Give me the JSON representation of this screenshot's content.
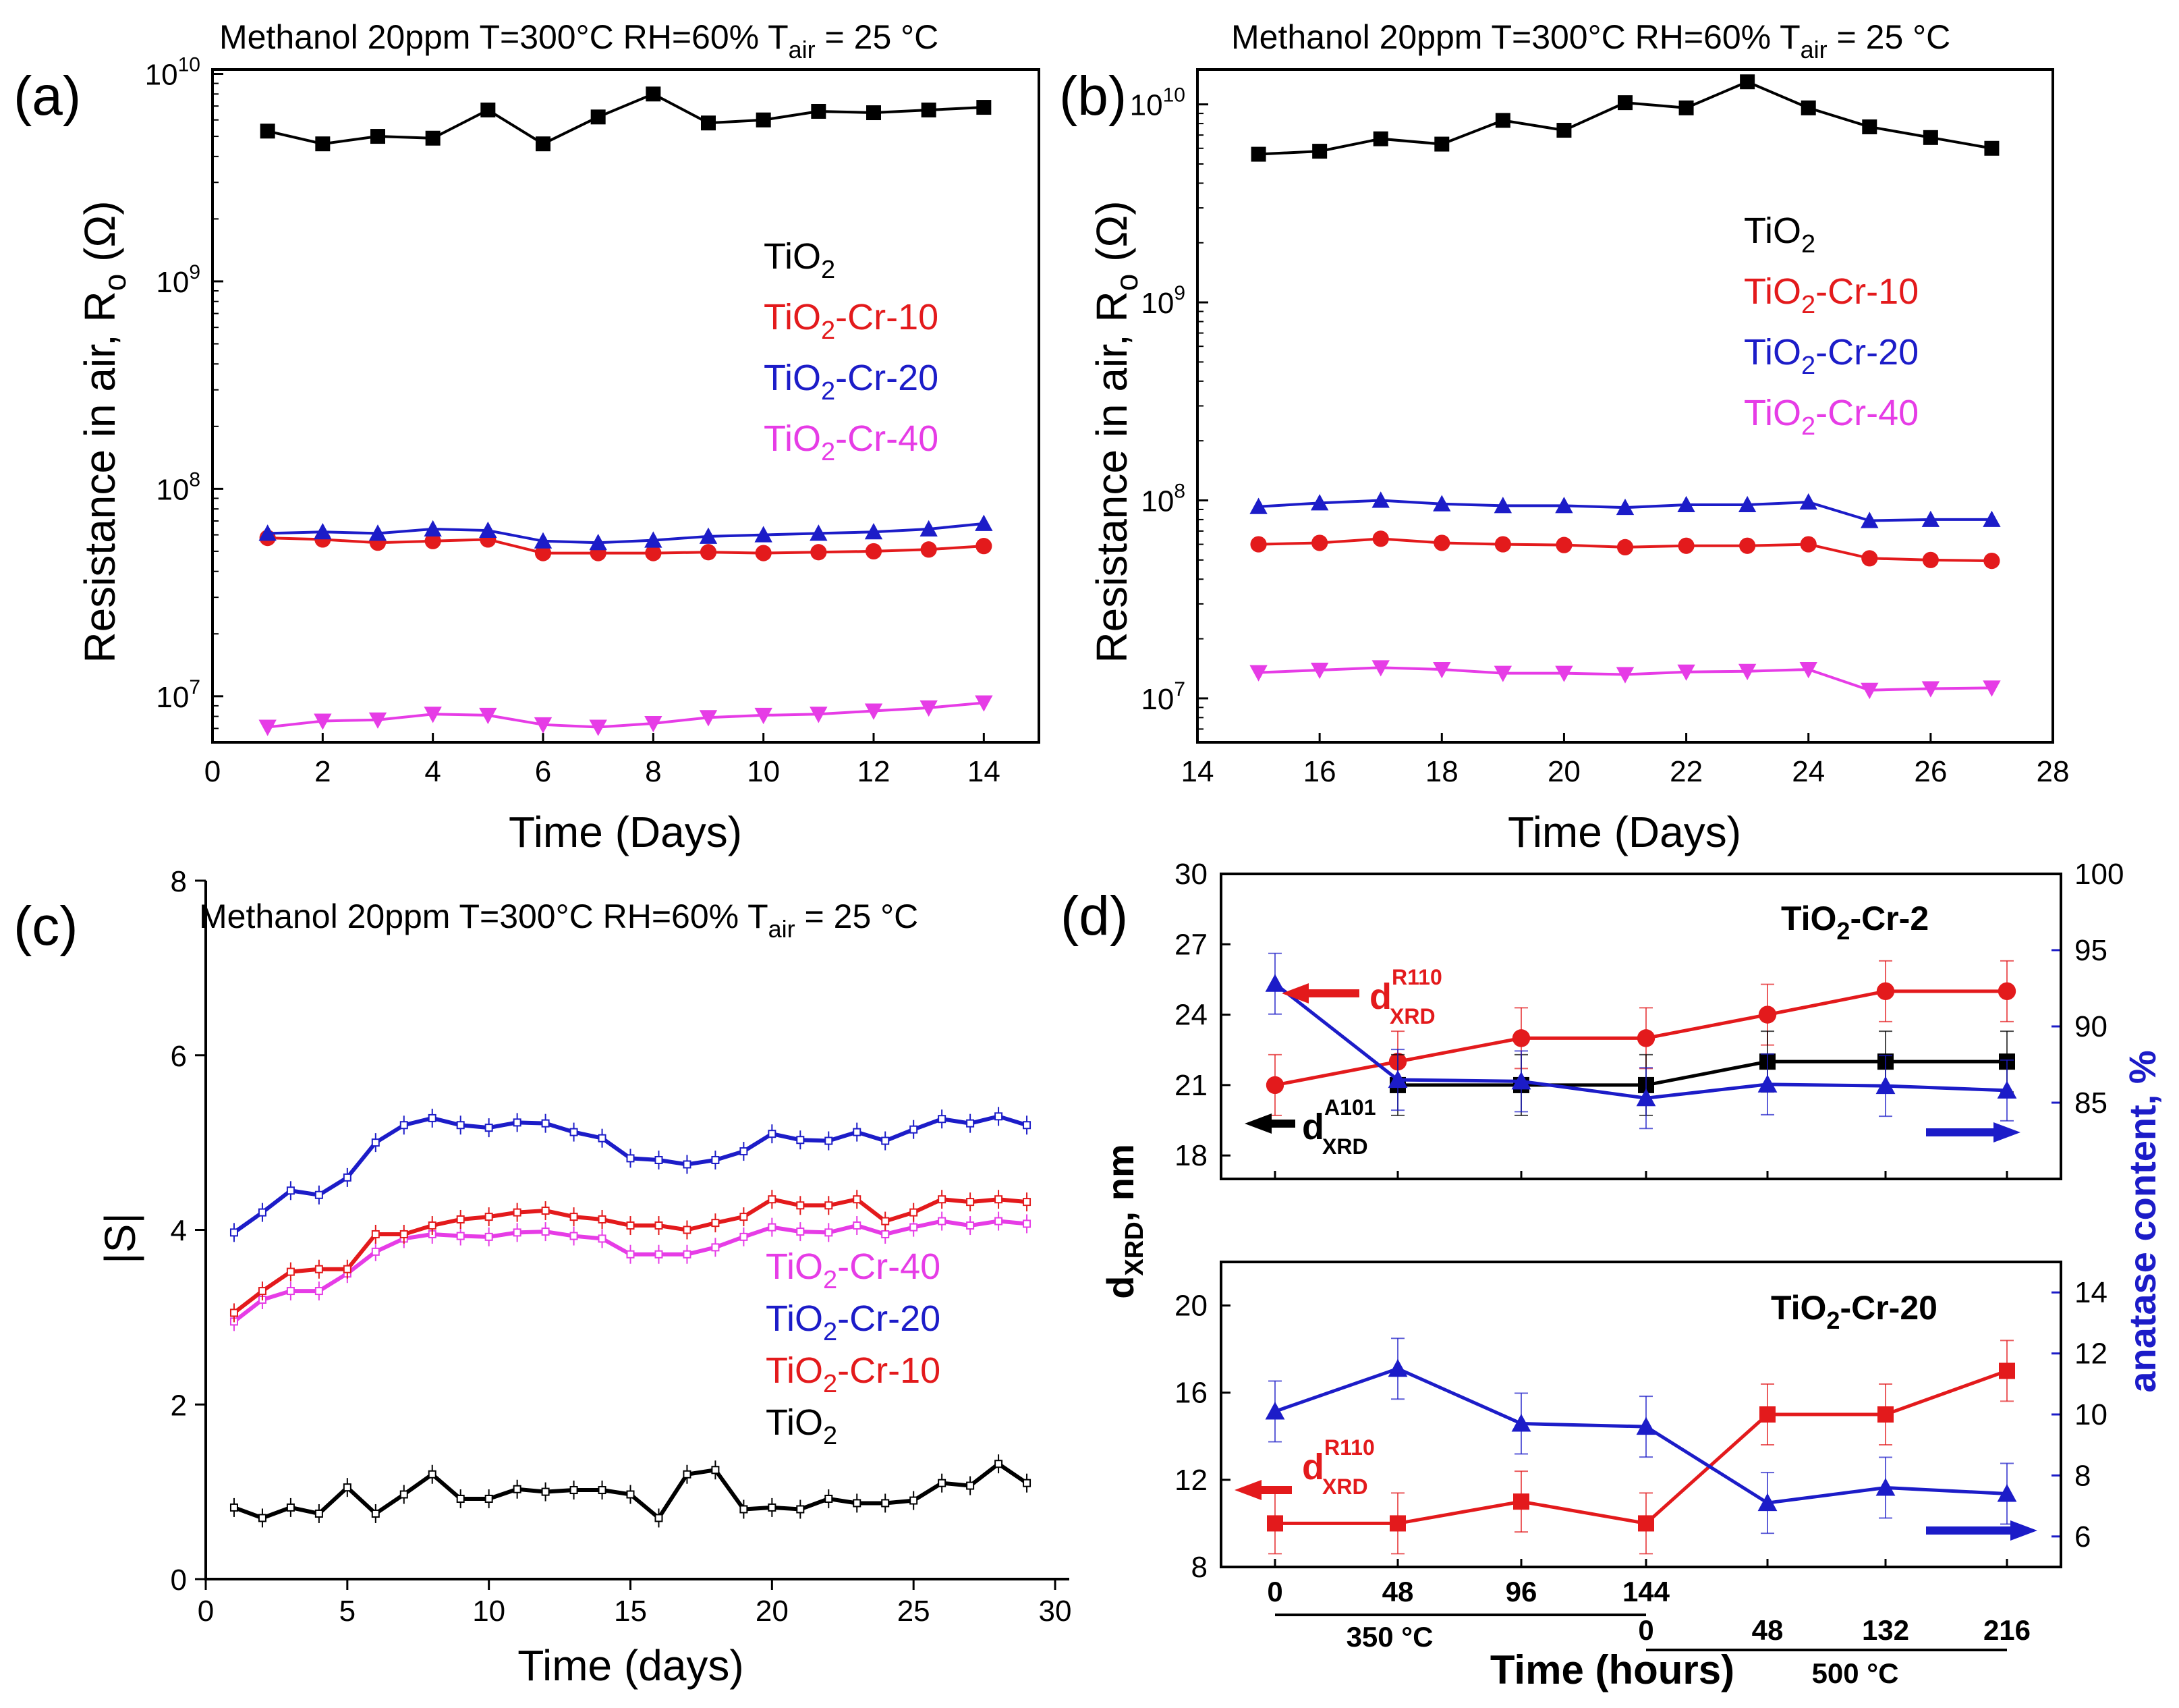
{
  "chart_data": [
    {
      "id": "a",
      "type": "line",
      "panel_label": "(a)",
      "title": "Methanol 20ppm T=300°C RH=60% T",
      "title_sub": "air",
      "title_tail": " = 25 °C",
      "xlabel": "Time (Days)",
      "ylabel": "Resistance in air, R",
      "ylabel_sub": "o",
      "ylabel_unit": " (Ω)",
      "yscale": "log",
      "xlim": [
        0,
        15
      ],
      "ylim": [
        6000000,
        10500000000
      ],
      "xticks": [
        0,
        2,
        4,
        6,
        8,
        10,
        12,
        14
      ],
      "yticks": [
        {
          "base": "10",
          "exp": "7",
          "value": 10000000
        },
        {
          "base": "10",
          "exp": "8",
          "value": 100000000
        },
        {
          "base": "10",
          "exp": "9",
          "value": 1000000000
        },
        {
          "base": "10",
          "exp": "10",
          "value": 10000000000
        }
      ],
      "x": [
        1,
        2,
        3,
        4,
        5,
        6,
        7,
        8,
        9,
        10,
        11,
        12,
        13,
        14
      ],
      "series": [
        {
          "name": "TiO2",
          "label": "TiO",
          "label_sub": "2",
          "label_tail": "",
          "color": "#000000",
          "marker": "square",
          "values": [
            5300000000,
            4600000000,
            5000000000,
            4900000000,
            6700000000,
            4600000000,
            6200000000,
            8000000000,
            5800000000,
            6000000000,
            6600000000,
            6500000000,
            6700000000,
            6900000000
          ]
        },
        {
          "name": "TiO2-Cr-10",
          "label": "TiO",
          "label_sub": "2",
          "label_tail": "-Cr-10",
          "color": "#e31a1c",
          "marker": "circle",
          "values": [
            58000000,
            57000000,
            55000000,
            56000000,
            57000000,
            49000000,
            49000000,
            49000000,
            49500000,
            49000000,
            49500000,
            50000000,
            51000000,
            53000000
          ]
        },
        {
          "name": "TiO2-Cr-20",
          "label": "TiO",
          "label_sub": "2",
          "label_tail": "-Cr-20",
          "color": "#1c1cc8",
          "marker": "triangle-up",
          "values": [
            61000000,
            62000000,
            61000000,
            64000000,
            63000000,
            56000000,
            55000000,
            56500000,
            59000000,
            60000000,
            61000000,
            62000000,
            64000000,
            68000000
          ]
        },
        {
          "name": "TiO2-Cr-40",
          "label": "TiO",
          "label_sub": "2",
          "label_tail": "-Cr-40",
          "color": "#e63ce6",
          "marker": "triangle-down",
          "values": [
            7100000,
            7600000,
            7700000,
            8200000,
            8100000,
            7300000,
            7100000,
            7400000,
            7900000,
            8100000,
            8200000,
            8500000,
            8800000,
            9300000
          ]
        }
      ]
    },
    {
      "id": "b",
      "type": "line",
      "panel_label": "(b)",
      "title": "Methanol 20ppm T=300°C RH=60% T",
      "title_sub": "air",
      "title_tail": " = 25 °C",
      "xlabel": "Time (Days)",
      "ylabel": "Resistance in air, R",
      "ylabel_sub": "o",
      "ylabel_unit": " (Ω)",
      "yscale": "log",
      "xlim": [
        14,
        28
      ],
      "ylim": [
        6000000,
        15000000000
      ],
      "xticks": [
        14,
        16,
        18,
        20,
        22,
        24,
        26,
        28
      ],
      "yticks": [
        {
          "base": "10",
          "exp": "7",
          "value": 10000000
        },
        {
          "base": "10",
          "exp": "8",
          "value": 100000000
        },
        {
          "base": "10",
          "exp": "9",
          "value": 1000000000
        },
        {
          "base": "10",
          "exp": "10",
          "value": 10000000000
        }
      ],
      "x": [
        15,
        16,
        17,
        18,
        19,
        20,
        21,
        22,
        23,
        24,
        25,
        26,
        27
      ],
      "series": [
        {
          "name": "TiO2",
          "label": "TiO",
          "label_sub": "2",
          "label_tail": "",
          "color": "#000000",
          "marker": "square",
          "values": [
            5600000000,
            5800000000,
            6700000000,
            6300000000,
            8300000000,
            7400000000,
            10200000000,
            9600000000,
            13000000000,
            9600000000,
            7700000000,
            6800000000,
            6000000000
          ]
        },
        {
          "name": "TiO2-Cr-10",
          "label": "TiO",
          "label_sub": "2",
          "label_tail": "-Cr-10",
          "color": "#e31a1c",
          "marker": "circle",
          "values": [
            60000000,
            61000000,
            64000000,
            61000000,
            60000000,
            59500000,
            58000000,
            59000000,
            59000000,
            60000000,
            51000000,
            50000000,
            49500000
          ]
        },
        {
          "name": "TiO2-Cr-20",
          "label": "TiO",
          "label_sub": "2",
          "label_tail": "-Cr-20",
          "color": "#1c1cc8",
          "marker": "triangle-up",
          "values": [
            93000000,
            97000000,
            100000000,
            96000000,
            94000000,
            94000000,
            92000000,
            95000000,
            95000000,
            98000000,
            79000000,
            80000000,
            80000000
          ]
        },
        {
          "name": "TiO2-Cr-40",
          "label": "TiO",
          "label_sub": "2",
          "label_tail": "-Cr-40",
          "color": "#e63ce6",
          "marker": "triangle-down",
          "values": [
            13500000,
            13900000,
            14300000,
            14000000,
            13400000,
            13400000,
            13200000,
            13600000,
            13700000,
            14000000,
            11000000,
            11200000,
            11300000
          ]
        }
      ]
    },
    {
      "id": "c",
      "type": "line",
      "panel_label": "(c)",
      "title": "Methanol 20ppm T=300°C RH=60% T",
      "title_sub": "air",
      "title_tail": " = 25 °C",
      "xlabel": "Time (days)",
      "ylabel": "|S|",
      "xlim": [
        0,
        30.5
      ],
      "ylim": [
        0,
        8
      ],
      "xticks": [
        0,
        5,
        10,
        15,
        20,
        25,
        30
      ],
      "yticks": [
        0,
        2,
        4,
        6,
        8
      ],
      "x": [
        1,
        2,
        3,
        4,
        5,
        6,
        7,
        8,
        9,
        10,
        11,
        12,
        13,
        14,
        15,
        16,
        17,
        18,
        19,
        20,
        21,
        22,
        23,
        24,
        25,
        26,
        27,
        28,
        29
      ],
      "series": [
        {
          "name": "TiO2-Cr-40",
          "label": "TiO",
          "label_sub": "2",
          "label_tail": "-Cr-40",
          "color": "#e63ce6",
          "values": [
            2.95,
            3.2,
            3.3,
            3.3,
            3.5,
            3.75,
            3.9,
            3.95,
            3.93,
            3.92,
            3.97,
            3.98,
            3.93,
            3.9,
            3.72,
            3.72,
            3.72,
            3.8,
            3.92,
            4.03,
            3.98,
            3.97,
            4.05,
            3.95,
            4.03,
            4.1,
            4.05,
            4.1,
            4.07
          ]
        },
        {
          "name": "TiO2-Cr-20",
          "label": "TiO",
          "label_sub": "2",
          "label_tail": "-Cr-20",
          "color": "#1c1cc8",
          "values": [
            3.97,
            4.2,
            4.45,
            4.4,
            4.6,
            5.0,
            5.2,
            5.28,
            5.2,
            5.17,
            5.23,
            5.22,
            5.12,
            5.05,
            4.82,
            4.8,
            4.75,
            4.8,
            4.9,
            5.1,
            5.03,
            5.02,
            5.12,
            5.02,
            5.15,
            5.27,
            5.22,
            5.3,
            5.2
          ]
        },
        {
          "name": "TiO2-Cr-10",
          "label": "TiO",
          "label_sub": "2",
          "label_tail": "-Cr-10",
          "color": "#e31a1c",
          "values": [
            3.05,
            3.3,
            3.52,
            3.55,
            3.55,
            3.95,
            3.95,
            4.05,
            4.12,
            4.15,
            4.2,
            4.22,
            4.15,
            4.12,
            4.05,
            4.05,
            4.0,
            4.08,
            4.15,
            4.35,
            4.28,
            4.28,
            4.35,
            4.1,
            4.2,
            4.35,
            4.32,
            4.35,
            4.32
          ]
        },
        {
          "name": "TiO2",
          "label": "TiO",
          "label_sub": "2",
          "label_tail": "",
          "color": "#000000",
          "values": [
            0.82,
            0.7,
            0.82,
            0.75,
            1.05,
            0.75,
            0.97,
            1.2,
            0.92,
            0.92,
            1.03,
            1.0,
            1.02,
            1.02,
            0.97,
            0.7,
            1.2,
            1.25,
            0.8,
            0.82,
            0.8,
            0.92,
            0.87,
            0.87,
            0.9,
            1.1,
            1.07,
            1.32,
            1.1
          ]
        }
      ]
    },
    {
      "id": "d",
      "type": "line",
      "panel_label": "(d)",
      "shared_ylabel_left": "d",
      "shared_ylabel_left_sub": "XRD",
      "shared_ylabel_left_tail": ", nm",
      "shared_ylabel_right": "anatase content, %",
      "x_positions_label": "Time (hours)",
      "x_tick_labels_top": [
        "0",
        "48",
        "96",
        "144"
      ],
      "x_tick_labels_bottom": [
        "0",
        "48",
        "132",
        "216"
      ],
      "temp_label_1": "350 °C",
      "temp_label_2": "500 °C",
      "subplots": [
        {
          "sample": "TiO",
          "sample_sub": "2",
          "sample_tail": "-Cr-2",
          "ylim_left": [
            17,
            30
          ],
          "yticks_left": [
            18,
            21,
            24,
            27,
            30
          ],
          "ylim_right": [
            80,
            100
          ],
          "yticks_right": [
            85,
            90,
            95,
            100
          ],
          "series": [
            {
              "name": "d_XRD R110",
              "label": "d",
              "label_sub": "XRD",
              "label_sup": "R110",
              "color": "#e31a1c",
              "axis": "left",
              "marker": "circle",
              "points": [
                [
                  0,
                  21
                ],
                [
                  1,
                  22
                ],
                [
                  2,
                  23
                ],
                [
                  3,
                  23
                ],
                [
                  4,
                  24
                ],
                [
                  5,
                  25
                ],
                [
                  6,
                  25
                ]
              ]
            },
            {
              "name": "d_XRD A101",
              "label": "d",
              "label_sub": "XRD",
              "label_sup": "A101",
              "color": "#000000",
              "axis": "left",
              "marker": "square",
              "points": [
                [
                  1,
                  21
                ],
                [
                  2,
                  21
                ],
                [
                  3,
                  21
                ],
                [
                  4,
                  22
                ],
                [
                  5,
                  22
                ],
                [
                  6,
                  22
                ]
              ]
            },
            {
              "name": "anatase content",
              "color": "#1c1cc8",
              "axis": "right",
              "marker": "triangle-up",
              "points": [
                [
                  0,
                  92.8
                ],
                [
                  1,
                  86.5
                ],
                [
                  2,
                  86.4
                ],
                [
                  3,
                  85.3
                ],
                [
                  4,
                  86.2
                ],
                [
                  5,
                  86.1
                ],
                [
                  6,
                  85.8
                ]
              ]
            }
          ]
        },
        {
          "sample": "TiO",
          "sample_sub": "2",
          "sample_tail": "-Cr-20",
          "ylim_left": [
            8,
            22
          ],
          "yticks_left": [
            8,
            12,
            16,
            20
          ],
          "ylim_right": [
            5,
            15
          ],
          "yticks_right": [
            6,
            8,
            10,
            12,
            14
          ],
          "series": [
            {
              "name": "d_XRD R110",
              "label": "d",
              "label_sub": "XRD",
              "label_sup": "R110",
              "color": "#e31a1c",
              "axis": "left",
              "marker": "square",
              "points": [
                [
                  0,
                  10
                ],
                [
                  1,
                  10
                ],
                [
                  2,
                  11
                ],
                [
                  3,
                  10
                ],
                [
                  4,
                  15
                ],
                [
                  5,
                  15
                ],
                [
                  6,
                  17
                ]
              ]
            },
            {
              "name": "anatase content",
              "color": "#1c1cc8",
              "axis": "right",
              "marker": "triangle-up",
              "points": [
                [
                  0,
                  10.1
                ],
                [
                  1,
                  11.5
                ],
                [
                  2,
                  9.7
                ],
                [
                  3,
                  9.6
                ],
                [
                  4,
                  7.1
                ],
                [
                  5,
                  7.6
                ],
                [
                  6,
                  7.4
                ]
              ]
            }
          ]
        }
      ]
    }
  ]
}
